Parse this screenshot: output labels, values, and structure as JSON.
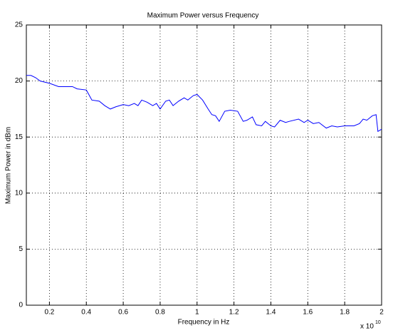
{
  "chart_data": {
    "type": "line",
    "title": "Maximum Power versus Frequency",
    "x_label": "Frequency in Hz",
    "y_label": "Maximum Power in dBm",
    "x_multiplier": "x 10",
    "x_exponent": "10",
    "x": [
      0.075,
      0.1,
      0.125,
      0.15,
      0.2,
      0.25,
      0.3,
      0.325,
      0.35,
      0.4,
      0.43,
      0.47,
      0.5,
      0.53,
      0.56,
      0.6,
      0.63,
      0.66,
      0.68,
      0.7,
      0.73,
      0.76,
      0.78,
      0.8,
      0.83,
      0.85,
      0.87,
      0.9,
      0.93,
      0.95,
      0.98,
      1.0,
      1.03,
      1.06,
      1.08,
      1.1,
      1.12,
      1.15,
      1.18,
      1.22,
      1.25,
      1.27,
      1.3,
      1.32,
      1.35,
      1.37,
      1.4,
      1.42,
      1.45,
      1.48,
      1.5,
      1.55,
      1.58,
      1.6,
      1.63,
      1.66,
      1.7,
      1.73,
      1.76,
      1.8,
      1.85,
      1.88,
      1.9,
      1.92,
      1.95,
      1.97,
      1.98,
      2.0
    ],
    "series": [
      {
        "name": "Maximum Power",
        "color": "#0000ff",
        "values": [
          20.5,
          20.5,
          20.3,
          20.0,
          19.8,
          19.5,
          19.5,
          19.5,
          19.3,
          19.2,
          18.3,
          18.2,
          17.8,
          17.5,
          17.7,
          17.9,
          17.8,
          18.0,
          17.8,
          18.3,
          18.1,
          17.8,
          18.0,
          17.5,
          18.2,
          18.3,
          17.8,
          18.2,
          18.5,
          18.3,
          18.7,
          18.8,
          18.3,
          17.5,
          17.0,
          16.9,
          16.4,
          17.3,
          17.4,
          17.3,
          16.4,
          16.5,
          16.8,
          16.1,
          16.0,
          16.4,
          16.0,
          15.9,
          16.5,
          16.3,
          16.4,
          16.6,
          16.3,
          16.5,
          16.2,
          16.3,
          15.8,
          16.0,
          15.9,
          16.0,
          16.0,
          16.2,
          16.6,
          16.5,
          16.9,
          17.0,
          15.5,
          15.7
        ]
      }
    ],
    "xlim": [
      0.075,
      2
    ],
    "ylim": [
      0,
      25
    ],
    "xticks": [
      0.2,
      0.4,
      0.6,
      0.8,
      1,
      1.2,
      1.4,
      1.6,
      1.8,
      2
    ],
    "yticks": [
      0,
      5,
      10,
      15,
      20,
      25
    ],
    "grid": true
  }
}
